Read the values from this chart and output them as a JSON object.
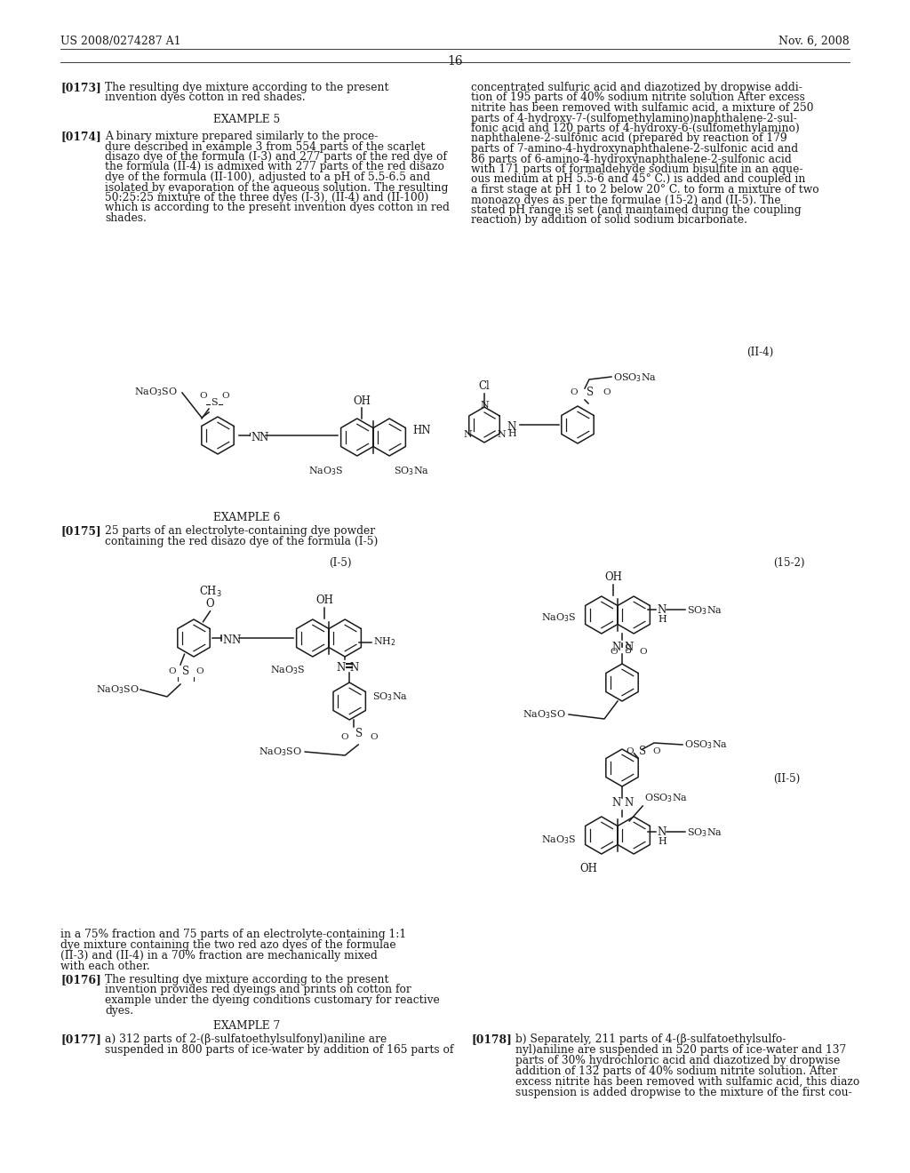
{
  "page_number": "16",
  "header_left": "US 2008/0274287 A1",
  "header_right": "Nov. 6, 2008",
  "bg": "#ffffff",
  "text_color": "#1a1a1a",
  "para_texts": {
    "p173": "[0173]    The resulting dye mixture according to the present\ninvention dyes cotton in red shades.",
    "ex5": "EXAMPLE 5",
    "p174": "[0174]    A binary mixture prepared similarly to the proce-\ndure described in example 3 from 554 parts of the scarlet\ndisazo dye of the formula (I-3) and 277 parts of the red dye of\nthe formula (II-4) is admixed with 277 parts of the red disazo\ndye of the formula (II-100), adjusted to a pH of 5.5-6.5 and\nisolated by evaporation of the aqueous solution. The resulting\n50:25:25 mixture of the three dyes (I-3), (II-4) and (II-100)\nwhich is according to the present invention dyes cotton in red\nshades.",
    "rc_top": "concentrated sulfuric acid and diazotized by dropwise addi-\ntion of 195 parts of 40% sodium nitrite solution After excess\nnitrite has been removed with sulfamic acid, a mixture of 250\nparts of 4-hydroxy-7-(sulfomethylamino)naphthalene-2-sul-\nfonic acid and 120 parts of 4-hydroxy-6-(sulfomethylamino)\nnaphthalene-2-sulfonic acid (prepared by reaction of 179\nparts of 7-amino-4-hydroxynaphthalene-2-sulfonic acid and\n86 parts of 6-amino-4-hydroxynaphthalene-2-sulfonic acid\nwith 171 parts of formaldehyde sodium bisulfite in an aque-\nous medium at pH 5.5-6 and 45° C.) is added and coupled in\na first stage at pH 1 to 2 below 20° C. to form a mixture of two\nmonoazo dyes as per the formulae (15-2) and (II-5). The\nstated pH range is set (and maintained during the coupling\nreaction) by addition of solid sodium bicarbonate.",
    "ex6": "EXAMPLE 6",
    "p175": "[0175]    25 parts of an electrolyte-containing dye powder\ncontaining the red disazo dye of the formula (I-5)",
    "bot_left1": "in a 75% fraction and 75 parts of an electrolyte-containing 1:1\ndye mixture containing the two red azo dyes of the formulae\n(II-3) and (II-4) in a 70% fraction are mechanically mixed\nwith each other.",
    "p176": "[0176]    The resulting dye mixture according to the present\ninvention provides red dyeings and prints on cotton for\nexample under the dyeing conditions customary for reactive\ndyes.",
    "ex7": "EXAMPLE 7",
    "p177": "[0177]    a) 312 parts of 2-(β-sulfatoethylsulfonyl)aniline are\nsuspended in 800 parts of ice-water by addition of 165 parts of",
    "p178": "[0178]    b) Separately, 211 parts of 4-(β-sulfatoethylsulfo-\nnyl)aniline are suspended in 520 parts of ice-water and 137\nparts of 30% hydrochloric acid and diazotized by dropwise\naddition of 132 parts of 40% sodium nitrite solution. After\nexcess nitrite has been removed with sulfamic acid, this diazo\nsuspension is added dropwise to the mixture of the first cou-"
  }
}
